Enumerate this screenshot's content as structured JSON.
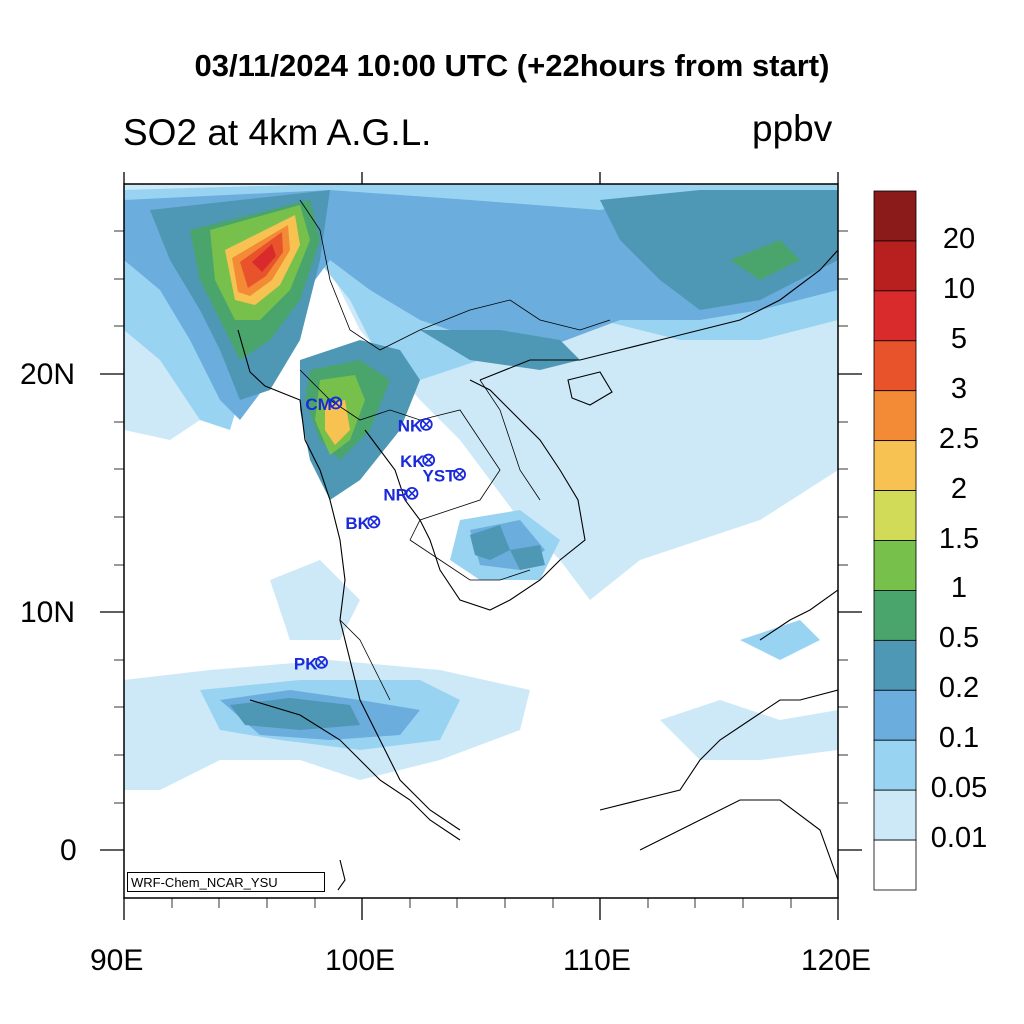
{
  "title": "03/11/2024 10:00 UTC (+22hours from start)",
  "subtitle": "SO2 at 4km A.G.L.",
  "units": "ppbv",
  "credit": "WRF-Chem_NCAR_YSU",
  "axes": {
    "x_ticks": [
      "90E",
      "100E",
      "110E",
      "120E"
    ],
    "y_ticks": [
      "20N",
      "10N",
      "0"
    ]
  },
  "colorbar": {
    "labels": [
      "20",
      "10",
      "5",
      "3",
      "2.5",
      "2",
      "1.5",
      "1",
      "0.5",
      "0.2",
      "0.1",
      "0.05",
      "0.01"
    ],
    "colors": [
      "#8b1a1a",
      "#b81f1f",
      "#d92b2b",
      "#e8532b",
      "#f28a36",
      "#f7c252",
      "#d2db58",
      "#77c04c",
      "#4aa56d",
      "#4e97b5",
      "#6baddd",
      "#98d3f2",
      "#cde9f8",
      "#ffffff"
    ]
  },
  "stations": [
    {
      "code": "CM",
      "lon": 98.9,
      "lat": 18.8
    },
    {
      "code": "NK",
      "lon": 102.7,
      "lat": 17.9
    },
    {
      "code": "KK",
      "lon": 102.8,
      "lat": 16.4
    },
    {
      "code": "YST",
      "lon": 104.1,
      "lat": 15.8
    },
    {
      "code": "NR",
      "lon": 102.1,
      "lat": 15.0
    },
    {
      "code": "BK",
      "lon": 100.5,
      "lat": 13.8
    },
    {
      "code": "PK",
      "lon": 98.3,
      "lat": 7.9
    }
  ],
  "map": {
    "lon_range": [
      90,
      120
    ],
    "lat_range": [
      -2,
      28
    ],
    "field": "SO2 mixing ratio"
  }
}
